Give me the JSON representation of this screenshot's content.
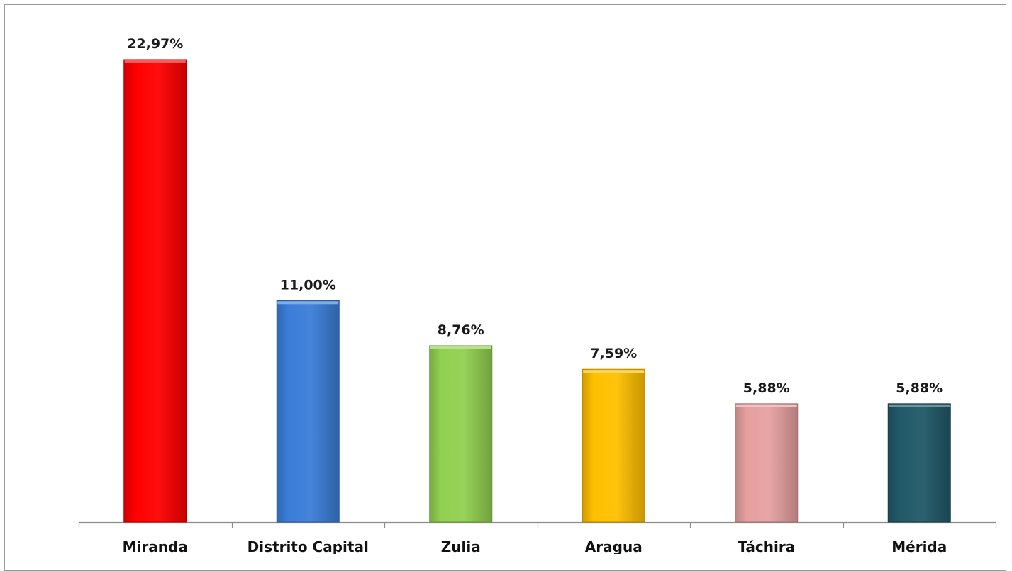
{
  "chart_data": {
    "type": "bar",
    "categories": [
      "Miranda",
      "Distrito Capital",
      "Zulia",
      "Aragua",
      "Táchira",
      "Mérida"
    ],
    "values": [
      22.97,
      11.0,
      8.76,
      7.59,
      5.88,
      5.88
    ],
    "value_labels": [
      "22,97%",
      "11,00%",
      "8,76%",
      "7,59%",
      "5,88%",
      "5,88%"
    ],
    "colors": [
      "#ff0000",
      "#3b7dd8",
      "#92d050",
      "#ffc000",
      "#e6a0a0",
      "#215968"
    ],
    "title": "",
    "xlabel": "",
    "ylabel": "",
    "ylim": [
      0,
      25
    ],
    "grid": false,
    "legend": "none"
  }
}
